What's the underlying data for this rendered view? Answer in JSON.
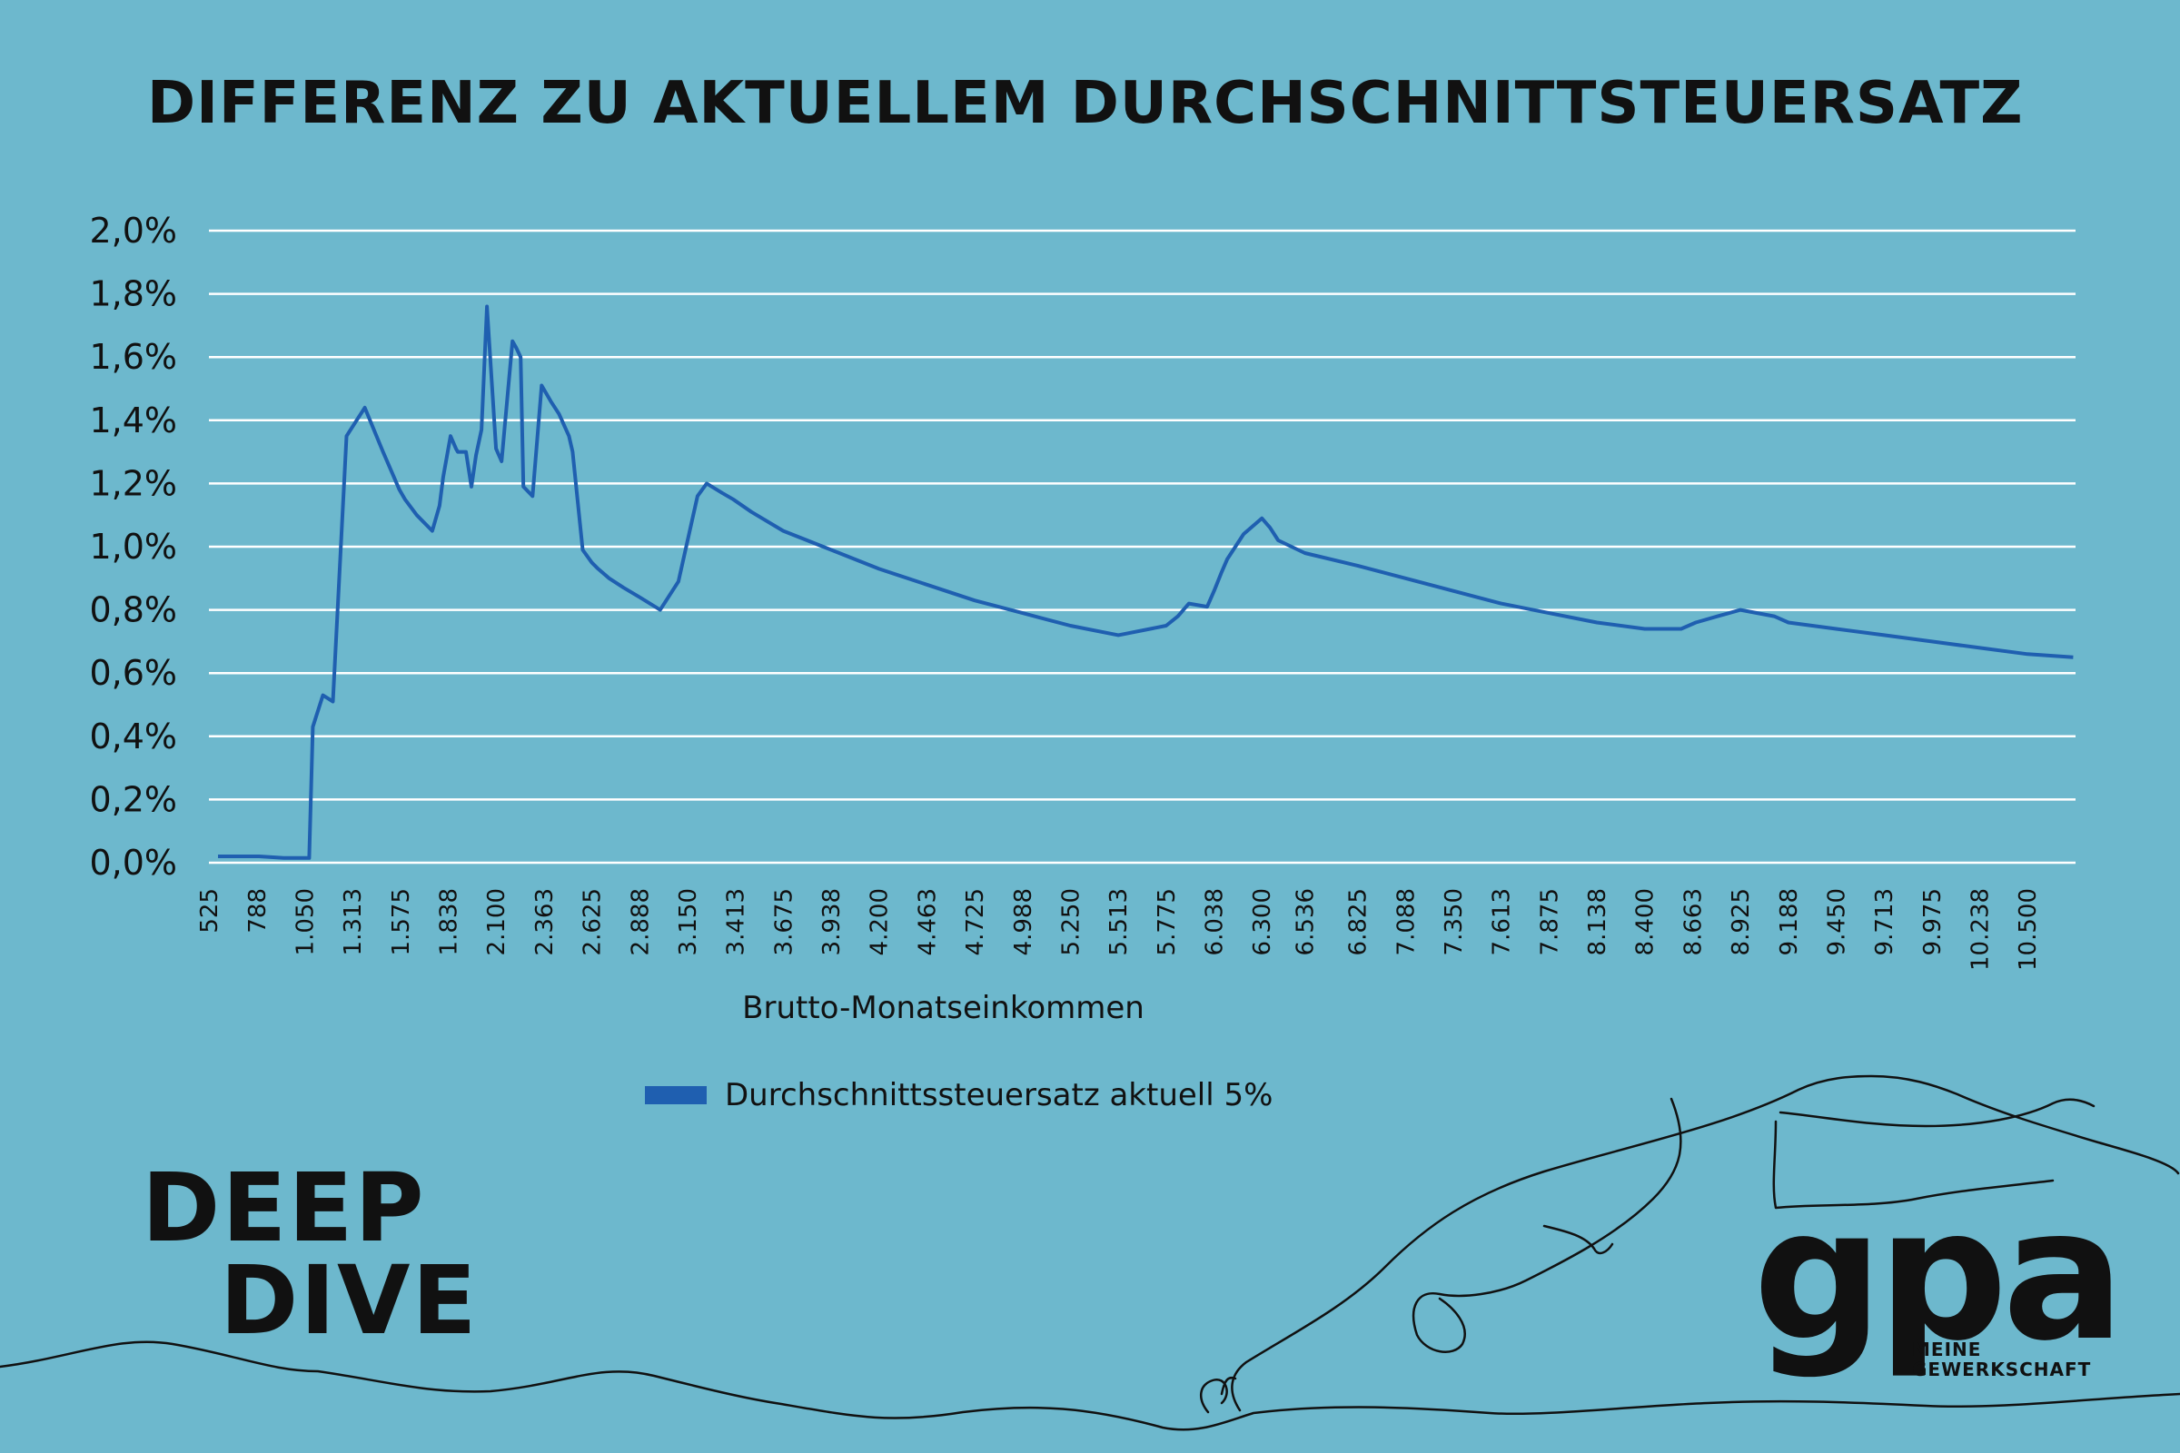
{
  "title": "DIFFERENZ ZU AKTUELLEM DURCHSCHNITTSTEUERSATZ",
  "colors": {
    "background": "#6db8cd",
    "series": "#1f5fb0",
    "grid": "#ffffff",
    "text": "#111111"
  },
  "brand": {
    "line1": "DEEP",
    "line2": "DIVE"
  },
  "logo": {
    "mark": "gpa",
    "line1": "MEINE",
    "line2": "GEWERKSCHAFT"
  },
  "chart_data": {
    "type": "line",
    "xlabel": "Brutto-Monatseinkommen",
    "ylabel": "",
    "ylim": [
      0,
      2.0
    ],
    "yticks": [
      0,
      0.2,
      0.4,
      0.6,
      0.8,
      1.0,
      1.2,
      1.4,
      1.6,
      1.8,
      2.0
    ],
    "ytick_labels": [
      "0,0%",
      "0,2%",
      "0,4%",
      "0,6%",
      "0,8%",
      "1,0%",
      "1,2%",
      "1,4%",
      "1,6%",
      "1,8%",
      "2,0%"
    ],
    "xlim": [
      525,
      10763
    ],
    "xticks": [
      525,
      788,
      1050,
      1313,
      1575,
      1838,
      2100,
      2363,
      2625,
      2888,
      3150,
      3413,
      3675,
      3938,
      4200,
      4463,
      4725,
      4988,
      5250,
      5513,
      5775,
      6038,
      6300,
      6536,
      6825,
      7088,
      7350,
      7613,
      7875,
      8138,
      8400,
      8663,
      8925,
      9188,
      9450,
      9713,
      9975,
      10238,
      10500
    ],
    "xtick_labels": [
      "525",
      "788",
      "1.050",
      "1.313",
      "1.575",
      "1.838",
      "2.100",
      "2.363",
      "2.625",
      "2.888",
      "3.150",
      "3.413",
      "3.675",
      "3.938",
      "4.200",
      "4.463",
      "4.725",
      "4.988",
      "5.250",
      "5.513",
      "5.775",
      "6.038",
      "6.300",
      "6.536",
      "6.825",
      "7.088",
      "7.350",
      "7.613",
      "7.875",
      "8.138",
      "8.400",
      "8.663",
      "8.925",
      "9.188",
      "9.450",
      "9.713",
      "9.975",
      "10.238",
      "10.500"
    ],
    "grid": true,
    "legend_position": "bottom",
    "series": [
      {
        "name": "Durchschnittssteuersatz aktuell 5%",
        "color": "#1f5fb0",
        "x": [
          575,
          630,
          700,
          800,
          935,
          975,
          1020,
          1075,
          1095,
          1150,
          1205,
          1280,
          1380,
          1480,
          1570,
          1600,
          1665,
          1750,
          1790,
          1810,
          1850,
          1880,
          1890,
          1935,
          1965,
          1990,
          2020,
          2050,
          2100,
          2130,
          2190,
          2210,
          2235,
          2250,
          2300,
          2350,
          2400,
          2445,
          2500,
          2520,
          2575,
          2625,
          2660,
          2720,
          2800,
          2888,
          3000,
          3100,
          3205,
          3255,
          3340,
          3400,
          3500,
          3675,
          3938,
          4200,
          4463,
          4725,
          4988,
          5250,
          5513,
          5775,
          5840,
          5900,
          6000,
          6038,
          6080,
          6110,
          6200,
          6300,
          6345,
          6390,
          6536,
          6825,
          7088,
          7350,
          7613,
          7875,
          8138,
          8400,
          8600,
          8680,
          8800,
          8925,
          9110,
          9188,
          9450,
          9713,
          9975,
          10238,
          10500,
          10750
        ],
        "y": [
          0.02,
          0.02,
          0.02,
          0.02,
          0.015,
          0.015,
          0.015,
          0.015,
          0.43,
          0.53,
          0.51,
          1.35,
          1.44,
          1.3,
          1.18,
          1.15,
          1.1,
          1.05,
          1.13,
          1.22,
          1.35,
          1.31,
          1.3,
          1.3,
          1.19,
          1.29,
          1.37,
          1.76,
          1.31,
          1.27,
          1.65,
          1.63,
          1.6,
          1.19,
          1.16,
          1.51,
          1.46,
          1.42,
          1.35,
          1.3,
          0.99,
          0.95,
          0.93,
          0.9,
          0.87,
          0.84,
          0.8,
          0.89,
          1.16,
          1.2,
          1.17,
          1.15,
          1.11,
          1.05,
          0.99,
          0.93,
          0.88,
          0.83,
          0.79,
          0.75,
          0.72,
          0.75,
          0.78,
          0.82,
          0.81,
          0.86,
          0.92,
          0.96,
          1.04,
          1.09,
          1.06,
          1.02,
          0.98,
          0.94,
          0.9,
          0.86,
          0.82,
          0.79,
          0.76,
          0.74,
          0.74,
          0.76,
          0.78,
          0.8,
          0.78,
          0.76,
          0.74,
          0.72,
          0.7,
          0.68,
          0.66,
          0.65
        ]
      }
    ]
  }
}
